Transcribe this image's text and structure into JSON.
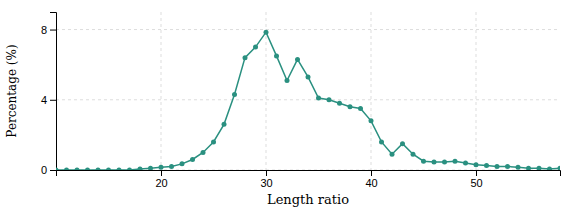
{
  "chart_data": {
    "type": "line",
    "x": [
      10,
      11,
      12,
      13,
      14,
      15,
      16,
      17,
      18,
      19,
      20,
      21,
      22,
      23,
      24,
      25,
      26,
      27,
      28,
      29,
      30,
      31,
      32,
      33,
      34,
      35,
      36,
      37,
      38,
      39,
      40,
      41,
      42,
      43,
      44,
      45,
      46,
      47,
      48,
      49,
      50,
      51,
      52,
      53,
      54,
      55,
      56,
      57,
      58
    ],
    "values": [
      0.0,
      0.0,
      0.0,
      0.0,
      0.0,
      0.0,
      0.0,
      0.0,
      0.05,
      0.1,
      0.15,
      0.2,
      0.35,
      0.6,
      1.0,
      1.6,
      2.6,
      4.3,
      6.4,
      7.0,
      7.85,
      6.5,
      5.1,
      6.3,
      5.3,
      4.1,
      4.0,
      3.8,
      3.6,
      3.5,
      2.8,
      1.6,
      0.9,
      1.5,
      0.9,
      0.5,
      0.45,
      0.45,
      0.5,
      0.4,
      0.3,
      0.25,
      0.2,
      0.2,
      0.15,
      0.1,
      0.1,
      0.05,
      0.1
    ],
    "color": "#2a9080",
    "marker": "circle",
    "xlabel": "Length ratio",
    "ylabel": "Percentage (%)",
    "xlim": [
      10,
      58
    ],
    "ylim": [
      0,
      9
    ],
    "xticks": [
      20,
      30,
      40,
      50
    ],
    "yticks": [
      0,
      4,
      8
    ],
    "grid": true
  }
}
